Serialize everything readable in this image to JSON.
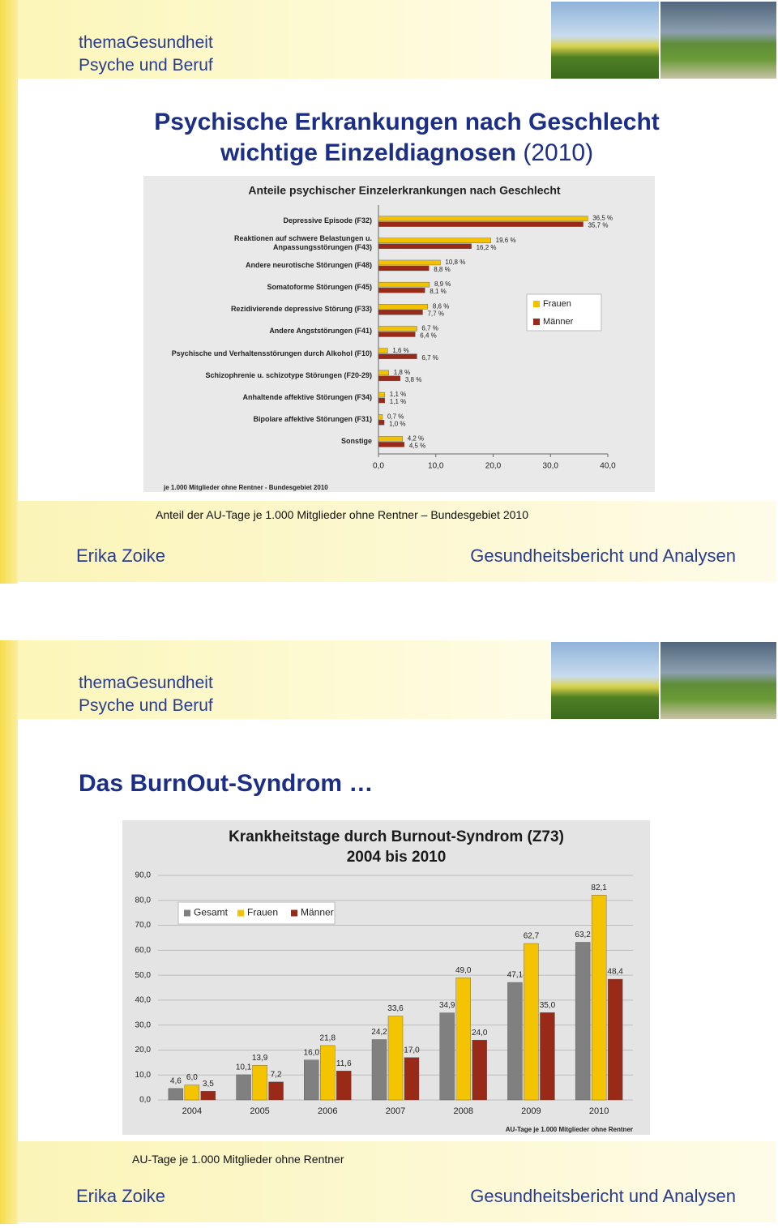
{
  "slides": [
    {
      "header_title": "themaGesundheit",
      "header_subtitle": "Psyche und Beruf",
      "title_line1": "Psychische Erkrankungen nach Geschlecht",
      "title_line2": "wichtige Einzeldiagnosen",
      "title_year": "(2010)",
      "caption": "Anteil der AU-Tage je 1.000 Mitglieder ohne Rentner – Bundesgebiet 2010",
      "footer_left": "Erika Zoike",
      "footer_right": "Gesundheitsbericht und Analysen"
    },
    {
      "header_title": "themaGesundheit",
      "header_subtitle": "Psyche und Beruf",
      "title": "Das BurnOut-Syndrom …",
      "caption": "AU-Tage je 1.000 Mitglieder ohne Rentner",
      "footer_left": "Erika Zoike",
      "footer_right": "Gesundheitsbericht und Analysen"
    }
  ],
  "chart_data": [
    {
      "type": "bar",
      "orientation": "horizontal",
      "title": "Anteile psychischer Einzelerkrankungen nach Geschlecht",
      "footnote": "je 1.000 Mitglieder ohne Rentner - Bundesgebiet 2010",
      "categories": [
        "Depressive Episode (F32)",
        "Reaktionen auf schwere Belastungen u.\nAnpassungsstörungen (F43)",
        "Andere neurotische Störungen (F48)",
        "Somatoforme Störungen (F45)",
        "Rezidivierende depressive Störung (F33)",
        "Andere Angststörungen (F41)",
        "Psychische und Verhaltensstörungen durch Alkohol (F10)",
        "Schizophrenie u. schizotype Störungen (F20-29)",
        "Anhaltende affektive Störungen (F34)",
        "Bipolare affektive Störungen (F31)",
        "Sonstige"
      ],
      "series": [
        {
          "name": "Frauen",
          "color": "#f2c200",
          "values": [
            36.5,
            19.6,
            10.8,
            8.9,
            8.6,
            6.7,
            1.6,
            1.8,
            1.1,
            0.7,
            4.2
          ],
          "value_labels": [
            "36,5 %",
            "19,6 %",
            "10,8 %",
            "8,9 %",
            "8,6 %",
            "6,7 %",
            "1,6 %",
            "1,8 %",
            "1,1 %",
            "0,7 %",
            "4,2 %"
          ]
        },
        {
          "name": "Männer",
          "color": "#9a2a18",
          "values": [
            35.7,
            16.2,
            8.8,
            8.1,
            7.7,
            6.4,
            6.7,
            3.8,
            1.1,
            1.0,
            4.5
          ],
          "value_labels": [
            "35,7 %",
            "16,2 %",
            "8,8 %",
            "8,1 %",
            "7,7 %",
            "6,4 %",
            "6,7 %",
            "3,8 %",
            "1,1 %",
            "1,0 %",
            "4,5 %"
          ]
        }
      ],
      "xlim": [
        0,
        40
      ],
      "xticks": [
        {
          "value": 0,
          "label": "0,0"
        },
        {
          "value": 10,
          "label": "10,0"
        },
        {
          "value": 20,
          "label": "20,0"
        },
        {
          "value": 30,
          "label": "30,0"
        },
        {
          "value": 40,
          "label": "40,0"
        }
      ],
      "grid": false,
      "legend": "right"
    },
    {
      "type": "bar",
      "orientation": "vertical",
      "title": "Krankheitstage durch Burnout-Syndrom (Z73)",
      "subtitle": "2004 bis 2010",
      "footnote": "AU-Tage je 1.000 Mitglieder ohne Rentner",
      "categories": [
        "2004",
        "2005",
        "2006",
        "2007",
        "2008",
        "2009",
        "2010"
      ],
      "series": [
        {
          "name": "Gesamt",
          "color": "#808080",
          "values": [
            4.6,
            10.1,
            16.0,
            24.2,
            34.9,
            47.1,
            63.2
          ],
          "value_labels": [
            "4,6",
            "10,1",
            "16,0",
            "24,2",
            "34,9",
            "47,1",
            "63,2"
          ]
        },
        {
          "name": "Frauen",
          "color": "#f5c400",
          "values": [
            6.0,
            13.9,
            21.8,
            33.6,
            49.0,
            62.7,
            82.1
          ],
          "value_labels": [
            "6,0",
            "13,9",
            "21,8",
            "33,6",
            "49,0",
            "62,7",
            "82,1"
          ]
        },
        {
          "name": "Männer",
          "color": "#9a2a18",
          "values": [
            3.5,
            7.2,
            11.6,
            17.0,
            24.0,
            35.0,
            48.4
          ],
          "value_labels": [
            "3,5",
            "7,2",
            "11,6",
            "17,0",
            "24,0",
            "35,0",
            "48,4"
          ]
        }
      ],
      "ylim": [
        0,
        90
      ],
      "yticks": [
        {
          "value": 0,
          "label": "0,0"
        },
        {
          "value": 10,
          "label": "10,0"
        },
        {
          "value": 20,
          "label": "20,0"
        },
        {
          "value": 30,
          "label": "30,0"
        },
        {
          "value": 40,
          "label": "40,0"
        },
        {
          "value": 50,
          "label": "50,0"
        },
        {
          "value": 60,
          "label": "60,0"
        },
        {
          "value": 70,
          "label": "70,0"
        },
        {
          "value": 80,
          "label": "80,0"
        },
        {
          "value": 90,
          "label": "90,0"
        }
      ],
      "grid": true,
      "legend": "upper left"
    }
  ]
}
